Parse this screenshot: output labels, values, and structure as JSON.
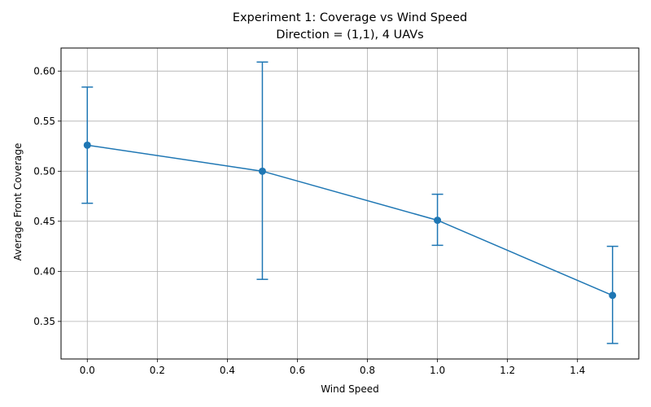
{
  "chart_data": {
    "type": "line",
    "title": "Experiment 1: Coverage vs Wind Speed",
    "subtitle": "Direction = (1,1), 4 UAVs",
    "xlabel": "Wind Speed",
    "ylabel": "Average Front Coverage",
    "xlim": [
      -0.075,
      1.575
    ],
    "ylim": [
      0.3125,
      0.623
    ],
    "xticks": [
      0.0,
      0.2,
      0.4,
      0.6,
      0.8,
      1.0,
      1.2,
      1.4
    ],
    "xtick_labels": [
      "0.0",
      "0.2",
      "0.4",
      "0.6",
      "0.8",
      "1.0",
      "1.2",
      "1.4"
    ],
    "yticks": [
      0.35,
      0.4,
      0.45,
      0.5,
      0.55,
      0.6
    ],
    "ytick_labels": [
      "0.35",
      "0.40",
      "0.45",
      "0.50",
      "0.55",
      "0.60"
    ],
    "grid": true,
    "series": [
      {
        "color": "#1f77b4",
        "x": [
          0.0,
          0.5,
          1.0,
          1.5
        ],
        "y": [
          0.526,
          0.5,
          0.451,
          0.376
        ],
        "yerr_lower": [
          0.468,
          0.392,
          0.426,
          0.328
        ],
        "yerr_upper": [
          0.584,
          0.609,
          0.477,
          0.425
        ]
      }
    ]
  }
}
